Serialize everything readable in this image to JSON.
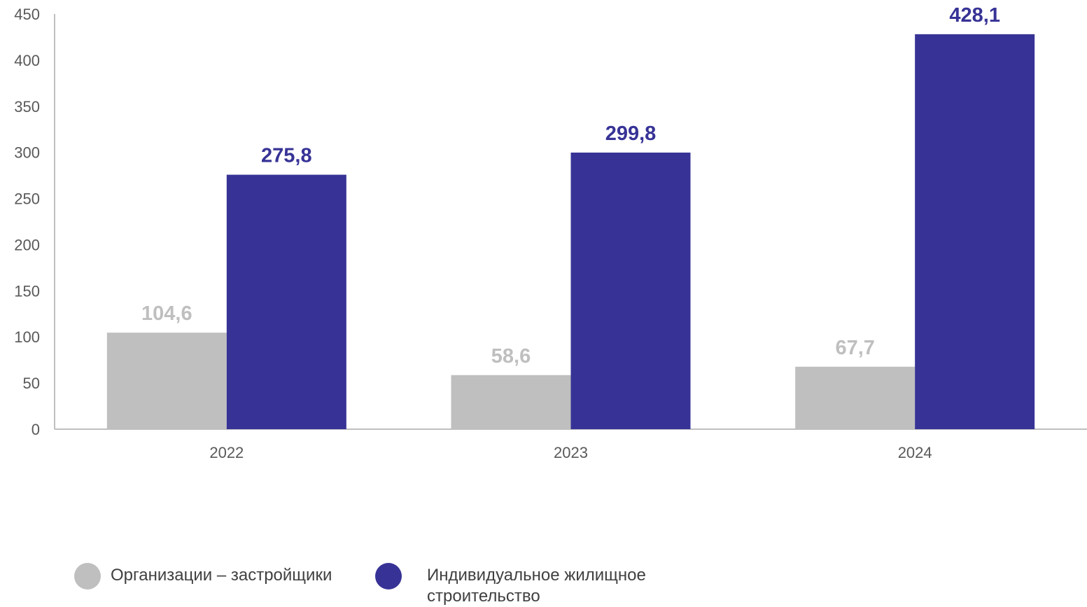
{
  "chart_data": {
    "type": "bar",
    "categories": [
      "2022",
      "2023",
      "2024"
    ],
    "series": [
      {
        "name": "Организации – застройщики",
        "color": "#bfbfbf",
        "values": [
          104.6,
          58.6,
          67.7
        ],
        "labels": [
          "104,6",
          "58,6",
          "67,7"
        ]
      },
      {
        "name": "Индивидуальное жилищное строительство",
        "color": "#373396",
        "values": [
          275.8,
          299.8,
          428.1
        ],
        "labels": [
          "275,8",
          "299,8",
          "428,1"
        ]
      }
    ],
    "ylim": [
      0,
      450
    ],
    "yticks": [
      "0",
      "50",
      "100",
      "150",
      "200",
      "250",
      "300",
      "350",
      "400",
      "450"
    ],
    "ytick_values": [
      0,
      50,
      100,
      150,
      200,
      250,
      300,
      350,
      400,
      450
    ],
    "legend": {
      "position": "bottom-left"
    },
    "grid": false
  },
  "legend_items": [
    {
      "label": "Организации – застройщики",
      "color": "#bfbfbf"
    },
    {
      "label": "Индивидуальное жилищное строительство",
      "color": "#373396"
    }
  ]
}
